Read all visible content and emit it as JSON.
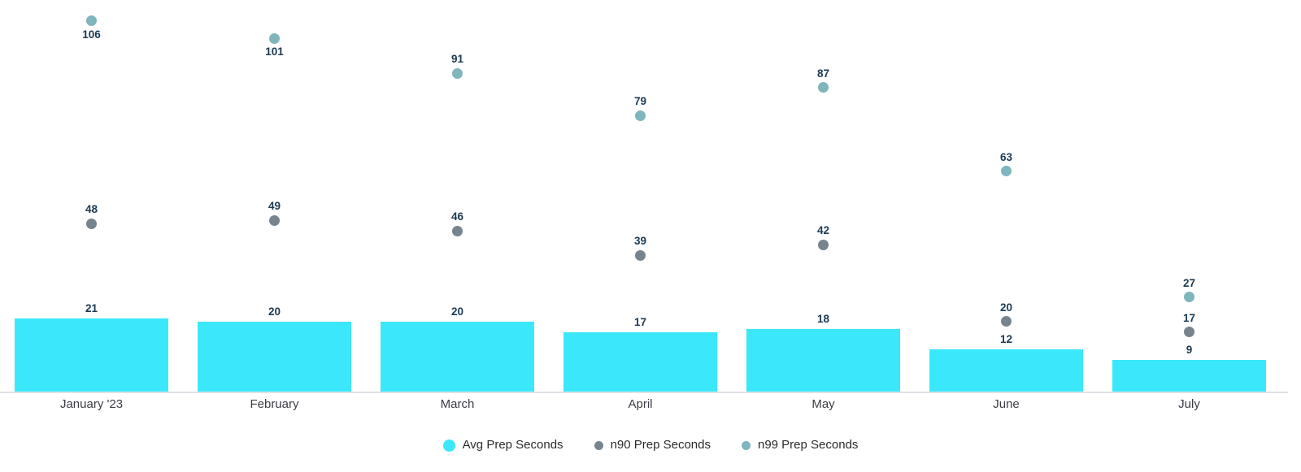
{
  "chart_data": {
    "type": "combo",
    "categories": [
      "January '23",
      "February",
      "March",
      "April",
      "May",
      "June",
      "July"
    ],
    "series": [
      {
        "name": "Avg Prep Seconds",
        "type": "bar",
        "color": "#3BE8FB",
        "values": [
          21,
          20,
          20,
          17,
          18,
          12,
          9
        ]
      },
      {
        "name": "n90 Prep Seconds",
        "type": "scatter",
        "color": "#76848E",
        "values": [
          48,
          49,
          46,
          39,
          42,
          20,
          17
        ]
      },
      {
        "name": "n99 Prep Seconds",
        "type": "scatter",
        "color": "#7FB5BD",
        "values": [
          106,
          101,
          91,
          79,
          87,
          63,
          27
        ]
      }
    ],
    "ylim": [
      0,
      112
    ],
    "xlabel": "",
    "ylabel": "",
    "title": "",
    "grid": false,
    "legend_position": "bottom",
    "data_labels": true
  },
  "colors": {
    "background": "#FFFFFF",
    "value_label": "#1A3A52",
    "axis_label": "#3C3C46",
    "axis_line": "#E0E0E8",
    "legend_text": "#2B2B2B"
  }
}
